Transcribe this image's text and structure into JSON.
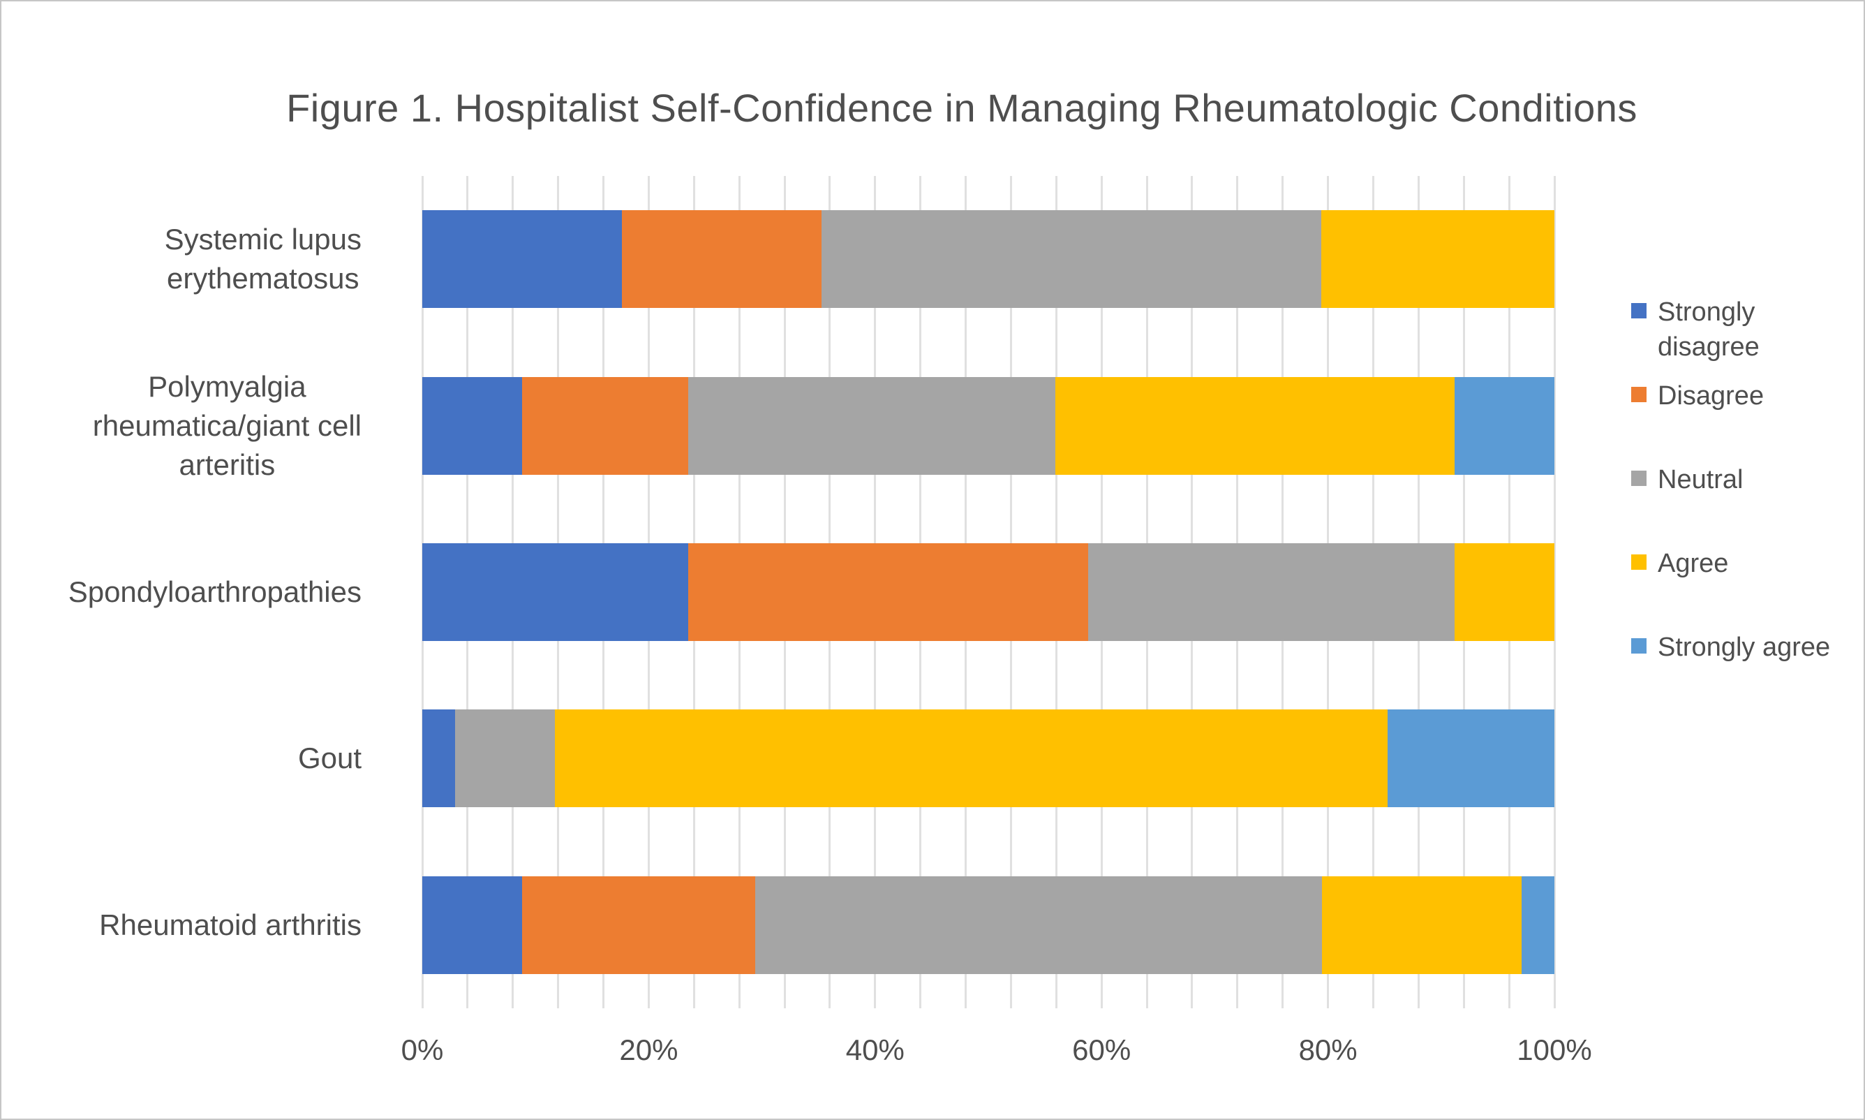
{
  "figure": {
    "title": "Figure 1. Hospitalist Self-Confidence in Managing Rheumatologic Conditions"
  },
  "colors": {
    "strongly_disagree": "#4472C4",
    "disagree": "#ED7D31",
    "neutral": "#A5A5A5",
    "agree": "#FFC000",
    "strongly_agree": "#5B9BD5",
    "gridline": "#e0e0e0",
    "text": "#4e4e4e",
    "frame_border": "#c6c6c6",
    "background": "#ffffff"
  },
  "chart_data": {
    "type": "bar",
    "orientation": "horizontal",
    "stacked": true,
    "stack_unit": "percent",
    "title": "Figure 1. Hospitalist Self-Confidence in Managing Rheumatologic Conditions",
    "categories": [
      "Systemic lupus erythematosus",
      "Polymyalgia rheumatica/giant cell arteritis",
      "Spondyloarthropathies",
      "Gout",
      "Rheumatoid arthritis"
    ],
    "category_label_lines": [
      [
        "Systemic lupus",
        "erythematosus"
      ],
      [
        "Polymyalgia",
        "rheumatica/giant cell",
        "arteritis"
      ],
      [
        "Spondyloarthropathies"
      ],
      [
        "Gout"
      ],
      [
        "Rheumatoid arthritis"
      ]
    ],
    "series": [
      {
        "name": "Strongly disagree",
        "color": "#4472C4",
        "values": [
          17.6,
          8.8,
          23.5,
          2.9,
          8.8
        ]
      },
      {
        "name": "Disagree",
        "color": "#ED7D31",
        "values": [
          17.6,
          14.7,
          35.3,
          0.0,
          20.6
        ]
      },
      {
        "name": "Neutral",
        "color": "#A5A5A5",
        "values": [
          44.1,
          32.4,
          32.4,
          8.8,
          50.0
        ]
      },
      {
        "name": "Agree",
        "color": "#FFC000",
        "values": [
          20.6,
          35.3,
          8.8,
          73.5,
          17.6
        ]
      },
      {
        "name": "Strongly agree",
        "color": "#5B9BD5",
        "values": [
          0.0,
          8.8,
          0.0,
          14.7,
          2.9
        ]
      }
    ],
    "x_ticks": [
      "0%",
      "20%",
      "40%",
      "60%",
      "80%",
      "100%"
    ],
    "xlim": [
      0,
      100
    ],
    "xlabel": "",
    "ylabel": "",
    "gridlines": {
      "vertical_step_pct": 4,
      "labeled_step_pct": 20
    },
    "legend_position": "right"
  }
}
